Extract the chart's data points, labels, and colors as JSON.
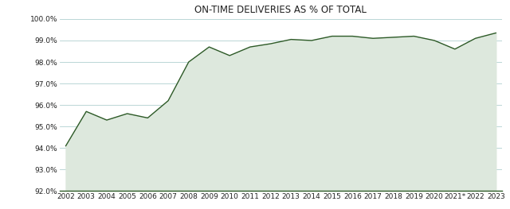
{
  "title": "ON-TIME DELIVERIES AS % OF TOTAL",
  "years": [
    "2002",
    "2003",
    "2004",
    "2005",
    "2006",
    "2007",
    "2008",
    "2009",
    "2010",
    "2011",
    "2012",
    "2013",
    "2014",
    "2015",
    "2016",
    "2017",
    "2018",
    "2019",
    "2020",
    "2021*",
    "2022",
    "2023"
  ],
  "values": [
    94.1,
    95.7,
    95.3,
    95.6,
    95.4,
    96.2,
    98.0,
    98.7,
    98.3,
    98.7,
    98.85,
    99.05,
    99.0,
    99.2,
    99.2,
    99.1,
    99.15,
    99.2,
    99.0,
    98.6,
    99.1,
    99.35
  ],
  "line_color": "#2d5a27",
  "fill_color": "#dde8dd",
  "background_color": "#ffffff",
  "grid_color": "#b0d0d0",
  "bottom_line_color": "#2d5a27",
  "title_color": "#222222",
  "tick_color": "#222222",
  "ylim": [
    92.0,
    100.0
  ],
  "yticks": [
    92.0,
    93.0,
    94.0,
    95.0,
    96.0,
    97.0,
    98.0,
    99.0,
    100.0
  ],
  "title_fontsize": 8.5,
  "tick_fontsize": 6.5
}
